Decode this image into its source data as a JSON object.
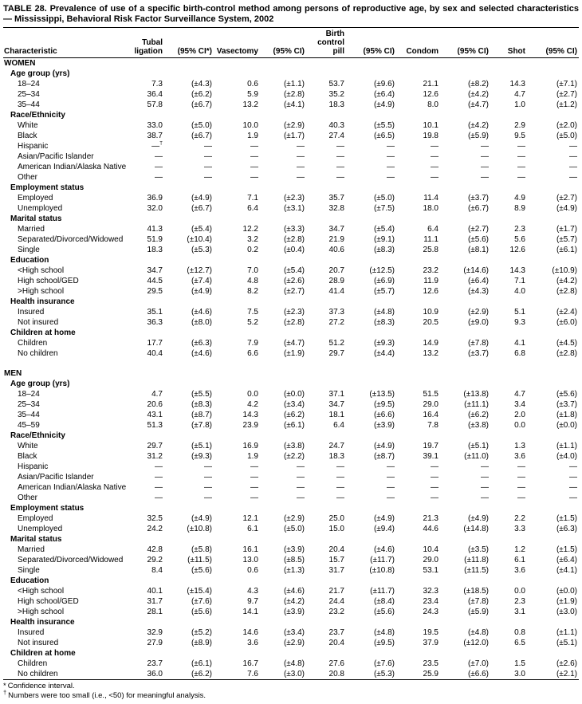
{
  "title": "TABLE 28. Prevalence of use of a specific birth-control method among persons of reproductive age, by sex and selected characteristics — Mississippi, Behavioral Risk Factor Surveillance System, 2002",
  "header": {
    "characteristic": "Characteristic",
    "tubal": [
      "Tubal",
      "ligation"
    ],
    "ci_star": "(95% CI*)",
    "vasectomy": "Vasectomy",
    "pill": [
      "Birth",
      "control",
      "pill"
    ],
    "condom": "Condom",
    "shot": "Shot",
    "ci": "(95% CI)"
  },
  "sections": [
    {
      "label": "WOMEN",
      "groups": [
        {
          "label": "Age group (yrs)",
          "rows": [
            {
              "label": "18–24",
              "values": [
                "7.3",
                "(±4.3)",
                "0.6",
                "(±1.1)",
                "53.7",
                "(±9.6)",
                "21.1",
                "(±8.2)",
                "14.3",
                "(±7.1)"
              ]
            },
            {
              "label": "25–34",
              "values": [
                "36.4",
                "(±6.2)",
                "5.9",
                "(±2.8)",
                "35.2",
                "(±6.4)",
                "12.6",
                "(±4.2)",
                "4.7",
                "(±2.7)"
              ]
            },
            {
              "label": "35–44",
              "values": [
                "57.8",
                "(±6.7)",
                "13.2",
                "(±4.1)",
                "18.3",
                "(±4.9)",
                "8.0",
                "(±4.7)",
                "1.0",
                "(±1.2)"
              ]
            }
          ]
        },
        {
          "label": "Race/Ethnicity",
          "rows": [
            {
              "label": "White",
              "values": [
                "33.0",
                "(±5.0)",
                "10.0",
                "(±2.9)",
                "40.3",
                "(±5.5)",
                "10.1",
                "(±4.2)",
                "2.9",
                "(±2.0)"
              ]
            },
            {
              "label": "Black",
              "values": [
                "38.7",
                "(±6.7)",
                "1.9",
                "(±1.7)",
                "27.4",
                "(±6.5)",
                "19.8",
                "(±5.9)",
                "9.5",
                "(±5.0)"
              ]
            },
            {
              "label": "Hispanic",
              "values": [
                "—†",
                "—",
                "—",
                "—",
                "—",
                "—",
                "—",
                "—",
                "—",
                "—"
              ]
            },
            {
              "label": "Asian/Pacific Islander",
              "values": [
                "—",
                "—",
                "—",
                "—",
                "—",
                "—",
                "—",
                "—",
                "—",
                "—"
              ]
            },
            {
              "label": "American Indian/Alaska Native",
              "values": [
                "—",
                "—",
                "—",
                "—",
                "—",
                "—",
                "—",
                "—",
                "—",
                "—"
              ]
            },
            {
              "label": "Other",
              "values": [
                "—",
                "—",
                "—",
                "—",
                "—",
                "—",
                "—",
                "—",
                "—",
                "—"
              ]
            }
          ]
        },
        {
          "label": "Employment status",
          "rows": [
            {
              "label": "Employed",
              "values": [
                "36.9",
                "(±4.9)",
                "7.1",
                "(±2.3)",
                "35.7",
                "(±5.0)",
                "11.4",
                "(±3.7)",
                "4.9",
                "(±2.7)"
              ]
            },
            {
              "label": "Unemployed",
              "values": [
                "32.0",
                "(±6.7)",
                "6.4",
                "(±3.1)",
                "32.8",
                "(±7.5)",
                "18.0",
                "(±6.7)",
                "8.9",
                "(±4.9)"
              ]
            }
          ]
        },
        {
          "label": "Marital status",
          "rows": [
            {
              "label": "Married",
              "values": [
                "41.3",
                "(±5.4)",
                "12.2",
                "(±3.3)",
                "34.7",
                "(±5.4)",
                "6.4",
                "(±2.7)",
                "2.3",
                "(±1.7)"
              ]
            },
            {
              "label": "Separated/Divorced/Widowed",
              "values": [
                "51.9",
                "(±10.4)",
                "3.2",
                "(±2.8)",
                "21.9",
                "(±9.1)",
                "11.1",
                "(±5.6)",
                "5.6",
                "(±5.7)"
              ]
            },
            {
              "label": "Single",
              "values": [
                "18.3",
                "(±5.3)",
                "0.2",
                "(±0.4)",
                "40.6",
                "(±8.3)",
                "25.8",
                "(±8.1)",
                "12.6",
                "(±6.1)"
              ]
            }
          ]
        },
        {
          "label": "Education",
          "rows": [
            {
              "label": "<High school",
              "values": [
                "34.7",
                "(±12.7)",
                "7.0",
                "(±5.4)",
                "20.7",
                "(±12.5)",
                "23.2",
                "(±14.6)",
                "14.3",
                "(±10.9)"
              ]
            },
            {
              "label": "High school/GED",
              "values": [
                "44.5",
                "(±7.4)",
                "4.8",
                "(±2.6)",
                "28.9",
                "(±6.9)",
                "11.9",
                "(±6.4)",
                "7.1",
                "(±4.2)"
              ]
            },
            {
              "label": ">High school",
              "values": [
                "29.5",
                "(±4.9)",
                "8.2",
                "(±2.7)",
                "41.4",
                "(±5.7)",
                "12.6",
                "(±4.3)",
                "4.0",
                "(±2.8)"
              ]
            }
          ]
        },
        {
          "label": "Health insurance",
          "rows": [
            {
              "label": "Insured",
              "values": [
                "35.1",
                "(±4.6)",
                "7.5",
                "(±2.3)",
                "37.3",
                "(±4.8)",
                "10.9",
                "(±2.9)",
                "5.1",
                "(±2.4)"
              ]
            },
            {
              "label": "Not insured",
              "values": [
                "36.3",
                "(±8.0)",
                "5.2",
                "(±2.8)",
                "27.2",
                "(±8.3)",
                "20.5",
                "(±9.0)",
                "9.3",
                "(±6.0)"
              ]
            }
          ]
        },
        {
          "label": "Children at home",
          "rows": [
            {
              "label": "Children",
              "values": [
                "17.7",
                "(±6.3)",
                "7.9",
                "(±4.7)",
                "51.2",
                "(±9.3)",
                "14.9",
                "(±7.8)",
                "4.1",
                "(±4.5)"
              ]
            },
            {
              "label": "No children",
              "values": [
                "40.4",
                "(±4.6)",
                "6.6",
                "(±1.9)",
                "29.7",
                "(±4.4)",
                "13.2",
                "(±3.7)",
                "6.8",
                "(±2.8)"
              ]
            }
          ]
        }
      ]
    },
    {
      "label": "MEN",
      "groups": [
        {
          "label": "Age group (yrs)",
          "rows": [
            {
              "label": "18–24",
              "values": [
                "4.7",
                "(±5.5)",
                "0.0",
                "(±0.0)",
                "37.1",
                "(±13.5)",
                "51.5",
                "(±13.8)",
                "4.7",
                "(±5.6)"
              ]
            },
            {
              "label": "25–34",
              "values": [
                "20.6",
                "(±8.3)",
                "4.2",
                "(±3.4)",
                "34.7",
                "(±9.5)",
                "29.0",
                "(±11.1)",
                "3.4",
                "(±3.7)"
              ]
            },
            {
              "label": "35–44",
              "values": [
                "43.1",
                "(±8.7)",
                "14.3",
                "(±6.2)",
                "18.1",
                "(±6.6)",
                "16.4",
                "(±6.2)",
                "2.0",
                "(±1.8)"
              ]
            },
            {
              "label": "45–59",
              "values": [
                "51.3",
                "(±7.8)",
                "23.9",
                "(±6.1)",
                "6.4",
                "(±3.9)",
                "7.8",
                "(±3.8)",
                "0.0",
                "(±0.0)"
              ]
            }
          ]
        },
        {
          "label": "Race/Ethnicity",
          "rows": [
            {
              "label": "White",
              "values": [
                "29.7",
                "(±5.1)",
                "16.9",
                "(±3.8)",
                "24.7",
                "(±4.9)",
                "19.7",
                "(±5.1)",
                "1.3",
                "(±1.1)"
              ]
            },
            {
              "label": "Black",
              "values": [
                "31.2",
                "(±9.3)",
                "1.9",
                "(±2.2)",
                "18.3",
                "(±8.7)",
                "39.1",
                "(±11.0)",
                "3.6",
                "(±4.0)"
              ]
            },
            {
              "label": "Hispanic",
              "values": [
                "—",
                "—",
                "—",
                "—",
                "—",
                "—",
                "—",
                "—",
                "—",
                "—"
              ]
            },
            {
              "label": "Asian/Pacific Islander",
              "values": [
                "—",
                "—",
                "—",
                "—",
                "—",
                "—",
                "—",
                "—",
                "—",
                "—"
              ]
            },
            {
              "label": "American Indian/Alaska Native",
              "values": [
                "—",
                "—",
                "—",
                "—",
                "—",
                "—",
                "—",
                "—",
                "—",
                "—"
              ]
            },
            {
              "label": "Other",
              "values": [
                "—",
                "—",
                "—",
                "—",
                "—",
                "—",
                "—",
                "—",
                "—",
                "—"
              ]
            }
          ]
        },
        {
          "label": "Employment status",
          "rows": [
            {
              "label": "Employed",
              "values": [
                "32.5",
                "(±4.9)",
                "12.1",
                "(±2.9)",
                "25.0",
                "(±4.9)",
                "21.3",
                "(±4.9)",
                "2.2",
                "(±1.5)"
              ]
            },
            {
              "label": "Unemployed",
              "values": [
                "24.2",
                "(±10.8)",
                "6.1",
                "(±5.0)",
                "15.0",
                "(±9.4)",
                "44.6",
                "(±14.8)",
                "3.3",
                "(±6.3)"
              ]
            }
          ]
        },
        {
          "label": "Marital status",
          "rows": [
            {
              "label": "Married",
              "values": [
                "42.8",
                "(±5.8)",
                "16.1",
                "(±3.9)",
                "20.4",
                "(±4.6)",
                "10.4",
                "(±3.5)",
                "1.2",
                "(±1.5)"
              ]
            },
            {
              "label": "Separated/Divorced/Widowed",
              "values": [
                "29.2",
                "(±11.5)",
                "13.0",
                "(±8.5)",
                "15.7",
                "(±11.7)",
                "29.0",
                "(±11.8)",
                "6.1",
                "(±6.4)"
              ]
            },
            {
              "label": "Single",
              "values": [
                "8.4",
                "(±5.6)",
                "0.6",
                "(±1.3)",
                "31.7",
                "(±10.8)",
                "53.1",
                "(±11.5)",
                "3.6",
                "(±4.1)"
              ]
            }
          ]
        },
        {
          "label": "Education",
          "rows": [
            {
              "label": "<High school",
              "values": [
                "40.1",
                "(±15.4)",
                "4.3",
                "(±4.6)",
                "21.7",
                "(±11.7)",
                "32.3",
                "(±18.5)",
                "0.0",
                "(±0.0)"
              ]
            },
            {
              "label": "High school/GED",
              "values": [
                "31.7",
                "(±7.6)",
                "9.7",
                "(±4.2)",
                "24.4",
                "(±8.4)",
                "23.4",
                "(±7.8)",
                "2.3",
                "(±1.9)"
              ]
            },
            {
              "label": ">High school",
              "values": [
                "28.1",
                "(±5.6)",
                "14.1",
                "(±3.9)",
                "23.2",
                "(±5.6)",
                "24.3",
                "(±5.9)",
                "3.1",
                "(±3.0)"
              ]
            }
          ]
        },
        {
          "label": "Health insurance",
          "rows": [
            {
              "label": "Insured",
              "values": [
                "32.9",
                "(±5.2)",
                "14.6",
                "(±3.4)",
                "23.7",
                "(±4.8)",
                "19.5",
                "(±4.8)",
                "0.8",
                "(±1.1)"
              ]
            },
            {
              "label": "Not insured",
              "values": [
                "27.9",
                "(±8.9)",
                "3.6",
                "(±2.9)",
                "20.4",
                "(±9.5)",
                "37.9",
                "(±12.0)",
                "6.5",
                "(±5.1)"
              ]
            }
          ]
        },
        {
          "label": "Children at home",
          "rows": [
            {
              "label": "Children",
              "values": [
                "23.7",
                "(±6.1)",
                "16.7",
                "(±4.8)",
                "27.6",
                "(±7.6)",
                "23.5",
                "(±7.0)",
                "1.5",
                "(±2.6)"
              ]
            },
            {
              "label": "No children",
              "values": [
                "36.0",
                "(±6.2)",
                "7.6",
                "(±3.0)",
                "20.8",
                "(±5.3)",
                "25.9",
                "(±6.6)",
                "3.0",
                "(±2.1)"
              ]
            }
          ]
        }
      ]
    }
  ],
  "footnotes": [
    {
      "marker": "*",
      "text": "Confidence interval."
    },
    {
      "marker": "†",
      "text": "Numbers were too small (i.e., <50) for meaningful analysis."
    }
  ]
}
